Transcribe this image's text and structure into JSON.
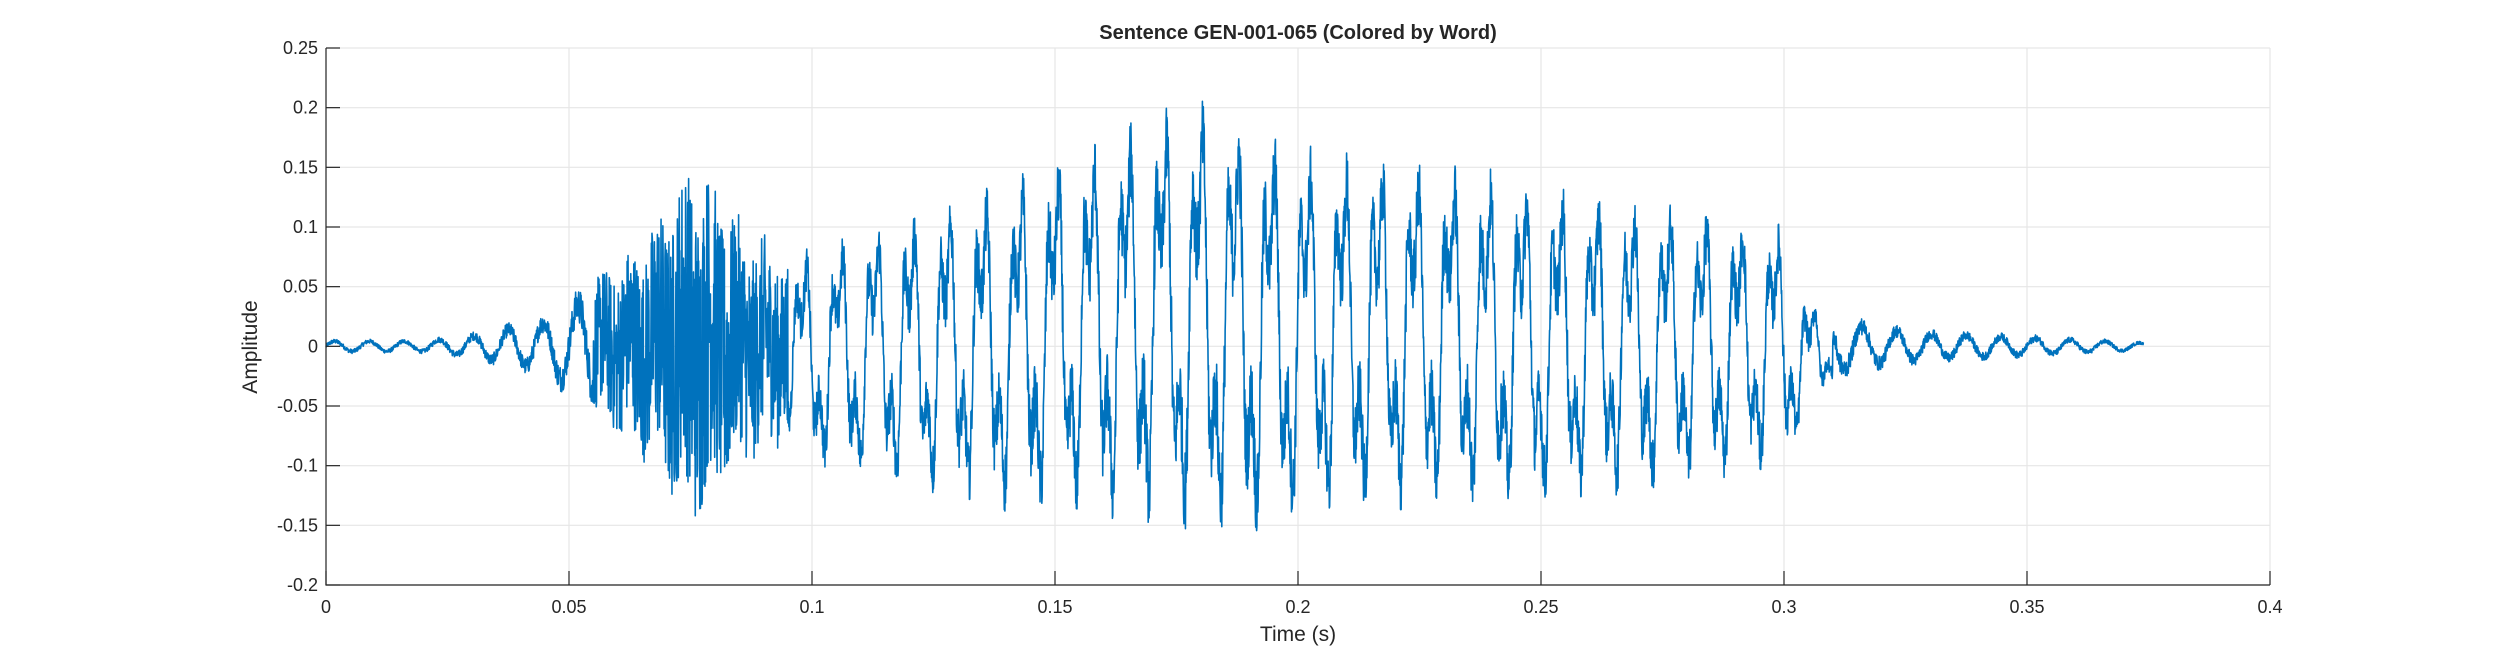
{
  "chart_data": {
    "type": "line",
    "title": "Sentence GEN-001-065 (Colored by Word)",
    "xlabel": "Time (s)",
    "ylabel": "Amplitude",
    "xlim": [
      0,
      0.4
    ],
    "ylim": [
      -0.2,
      0.25
    ],
    "xticks": [
      0,
      0.05,
      0.1,
      0.15,
      0.2,
      0.25,
      0.3,
      0.35,
      0.4
    ],
    "xtick_labels": [
      "0",
      "0.05",
      "0.1",
      "0.15",
      "0.2",
      "0.25",
      "0.3",
      "0.35",
      "0.4"
    ],
    "yticks": [
      -0.2,
      -0.15,
      -0.1,
      -0.05,
      0,
      0.05,
      0.1,
      0.15,
      0.2,
      0.25
    ],
    "ytick_labels": [
      "-0.2",
      "-0.15",
      "-0.1",
      "-0.05",
      "0",
      "0.05",
      "0.1",
      "0.15",
      "0.2",
      "0.25"
    ],
    "grid": true,
    "series": [
      {
        "color": "#0072BD",
        "duration_s": 0.374,
        "envelope": {
          "t": [
            0,
            0.02,
            0.03,
            0.045,
            0.055,
            0.065,
            0.075,
            0.078,
            0.085,
            0.095,
            0.1,
            0.12,
            0.14,
            0.16,
            0.17,
            0.18,
            0.19,
            0.2,
            0.22,
            0.24,
            0.26,
            0.28,
            0.3,
            0.305,
            0.31,
            0.32,
            0.33,
            0.35,
            0.374
          ],
          "max": [
            0.006,
            0.006,
            0.012,
            0.028,
            0.06,
            0.095,
            0.165,
            0.16,
            0.11,
            0.08,
            0.09,
            0.12,
            0.15,
            0.19,
            0.21,
            0.22,
            0.2,
            0.18,
            0.17,
            0.16,
            0.14,
            0.13,
            0.11,
            0.045,
            0.03,
            0.02,
            0.015,
            0.01,
            0.004
          ],
          "min": [
            -0.006,
            -0.006,
            -0.012,
            -0.028,
            -0.06,
            -0.095,
            -0.155,
            -0.15,
            -0.11,
            -0.08,
            -0.11,
            -0.13,
            -0.15,
            -0.16,
            -0.165,
            -0.17,
            -0.175,
            -0.16,
            -0.15,
            -0.15,
            -0.14,
            -0.13,
            -0.11,
            -0.07,
            -0.03,
            -0.02,
            -0.015,
            -0.01,
            -0.004
          ]
        }
      }
    ]
  }
}
